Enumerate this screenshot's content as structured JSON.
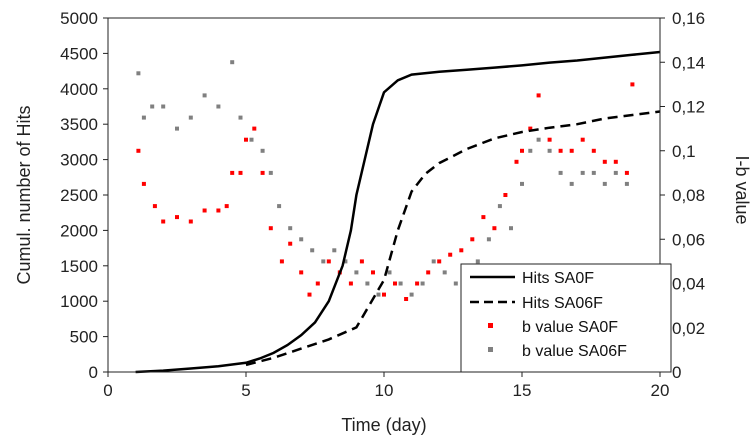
{
  "chart_data": {
    "type": "line",
    "x_axis": {
      "label": "Time (day)",
      "range": [
        0,
        20
      ],
      "ticks": [
        0,
        5,
        10,
        15,
        20
      ]
    },
    "y_axis_left": {
      "label": "Cumul. number of Hits",
      "range": [
        0,
        5000
      ],
      "ticks": [
        0,
        500,
        1000,
        1500,
        2000,
        2500,
        3000,
        3500,
        4000,
        4500,
        5000
      ]
    },
    "y_axis_right": {
      "label": "I-b value",
      "range": [
        0,
        0.16
      ],
      "ticks": [
        "0",
        "0,02",
        "0,04",
        "0,06",
        "0,08",
        "0,1",
        "0,12",
        "0,14",
        "0,16"
      ]
    },
    "grid": false,
    "legend": {
      "placement": "bottom-right"
    },
    "series": [
      {
        "name": "Hits SA0F",
        "kind": "line",
        "axis": "left",
        "color": "#000000",
        "dash": "solid",
        "x": [
          1,
          2,
          3,
          4,
          5,
          5.5,
          6,
          6.5,
          7,
          7.5,
          8,
          8.5,
          8.8,
          9,
          9.3,
          9.6,
          10,
          10.5,
          11,
          12,
          13,
          14,
          15,
          16,
          17,
          18,
          19,
          20
        ],
        "y": [
          0,
          20,
          50,
          80,
          130,
          190,
          270,
          380,
          520,
          700,
          1000,
          1500,
          2000,
          2500,
          3000,
          3500,
          3950,
          4120,
          4200,
          4240,
          4270,
          4300,
          4330,
          4370,
          4400,
          4440,
          4480,
          4520
        ]
      },
      {
        "name": "Hits SA06F",
        "kind": "line",
        "axis": "left",
        "color": "#000000",
        "dash": "dashed",
        "x": [
          5,
          6,
          7,
          8,
          9,
          10,
          10.5,
          11,
          11.5,
          12,
          12.5,
          13,
          14,
          15,
          16,
          17,
          18,
          19,
          20
        ],
        "y": [
          100,
          200,
          330,
          460,
          630,
          1300,
          2000,
          2550,
          2800,
          2950,
          3050,
          3150,
          3300,
          3390,
          3450,
          3500,
          3580,
          3630,
          3680
        ]
      },
      {
        "name": "b value SA0F",
        "kind": "scatter",
        "axis": "right",
        "color": "#ff0000",
        "segments": [
          {
            "x": [
              1.1,
              1.3,
              1.7,
              2.0,
              2.5,
              3.0,
              3.5,
              4.0,
              4.3,
              4.5,
              4.8,
              5.0,
              5.3,
              5.6,
              5.9,
              6.3,
              6.6,
              7.0,
              7.3,
              7.6,
              8.0,
              8.4,
              8.8,
              9.2,
              9.6,
              10.0,
              10.4,
              10.8,
              11.2,
              11.6,
              12.0,
              12.4,
              12.8,
              13.2,
              13.6,
              14.0,
              14.4,
              14.8,
              15.0,
              15.3,
              15.6,
              16.0,
              16.4,
              16.8,
              17.2,
              17.6,
              18.0,
              18.4,
              18.8,
              19.0
            ],
            "y": [
              0.1,
              0.085,
              0.075,
              0.068,
              0.07,
              0.068,
              0.073,
              0.073,
              0.075,
              0.09,
              0.09,
              0.105,
              0.11,
              0.09,
              0.065,
              0.05,
              0.058,
              0.045,
              0.035,
              0.04,
              0.05,
              0.045,
              0.04,
              0.05,
              0.045,
              0.035,
              0.04,
              0.033,
              0.04,
              0.045,
              0.05,
              0.053,
              0.055,
              0.06,
              0.07,
              0.065,
              0.08,
              0.095,
              0.1,
              0.11,
              0.125,
              0.105,
              0.1,
              0.1,
              0.105,
              0.1,
              0.095,
              0.095,
              0.09,
              0.13
            ]
          }
        ]
      },
      {
        "name": "b value SA06F",
        "kind": "scatter",
        "axis": "right",
        "color": "#808080",
        "segments": [
          {
            "x": [
              1.1,
              1.3,
              1.6,
              2.0,
              2.5,
              3.0,
              3.5,
              4.0,
              4.5,
              4.8,
              5.2,
              5.6,
              5.9,
              6.2,
              6.6,
              7.0,
              7.4,
              7.8,
              8.2,
              8.6,
              9.0,
              9.4,
              9.8,
              10.2,
              10.6,
              11.0,
              11.4,
              11.8,
              12.2,
              12.6,
              13.0,
              13.4,
              13.8,
              14.2,
              14.6,
              15.0,
              15.3,
              15.6,
              16.0,
              16.4,
              16.8,
              17.2,
              17.6,
              18.0,
              18.4,
              18.8
            ],
            "y": [
              0.135,
              0.115,
              0.12,
              0.12,
              0.11,
              0.115,
              0.125,
              0.12,
              0.14,
              0.115,
              0.105,
              0.1,
              0.09,
              0.075,
              0.065,
              0.06,
              0.055,
              0.05,
              0.055,
              0.05,
              0.045,
              0.04,
              0.035,
              0.045,
              0.04,
              0.035,
              0.04,
              0.05,
              0.045,
              0.04,
              0.045,
              0.05,
              0.06,
              0.075,
              0.065,
              0.085,
              0.1,
              0.105,
              0.1,
              0.09,
              0.085,
              0.09,
              0.09,
              0.085,
              0.09,
              0.085
            ]
          }
        ]
      }
    ]
  }
}
